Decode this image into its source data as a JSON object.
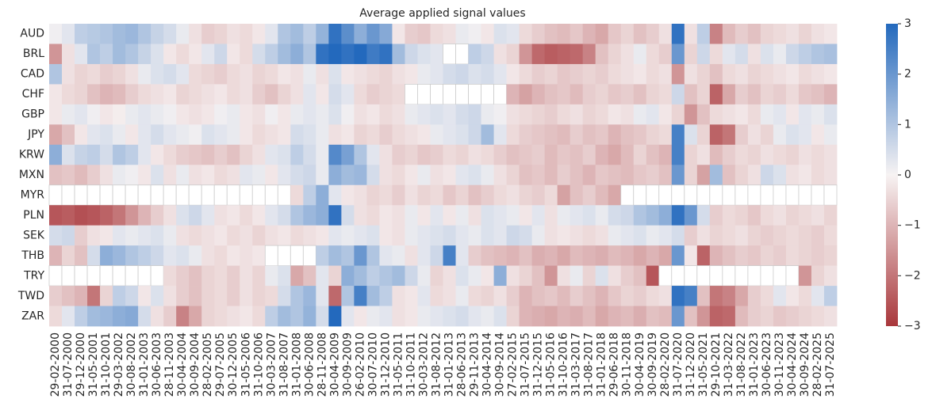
{
  "chart_data": {
    "type": "heatmap",
    "title": "Average applied signal values",
    "categories": [
      "29-02-2000",
      "31-07-2000",
      "29-12-2000",
      "31-05-2001",
      "31-10-2001",
      "29-03-2002",
      "30-08-2002",
      "31-01-2003",
      "30-06-2003",
      "28-11-2003",
      "30-04-2004",
      "30-09-2004",
      "28-02-2005",
      "29-07-2005",
      "30-12-2005",
      "31-05-2006",
      "31-10-2006",
      "30-03-2007",
      "31-08-2007",
      "31-01-2008",
      "30-06-2008",
      "28-11-2008",
      "30-04-2009",
      "30-09-2009",
      "26-02-2010",
      "30-07-2010",
      "31-12-2010",
      "31-05-2011",
      "31-10-2011",
      "30-03-2012",
      "31-08-2012",
      "31-01-2013",
      "28-06-2013",
      "29-11-2013",
      "30-04-2014",
      "30-09-2014",
      "27-02-2015",
      "31-07-2015",
      "31-12-2015",
      "31-05-2016",
      "31-10-2016",
      "31-03-2017",
      "31-08-2017",
      "31-01-2018",
      "29-06-2018",
      "30-11-2018",
      "30-04-2019",
      "30-09-2019",
      "28-02-2020",
      "31-07-2020",
      "31-12-2020",
      "31-05-2021",
      "29-10-2021",
      "31-03-2022",
      "31-08-2022",
      "31-01-2023",
      "30-06-2023",
      "30-11-2023",
      "30-04-2024",
      "30-09-2024",
      "28-02-2025",
      "31-07-2025"
    ],
    "series": [
      {
        "name": "AUD",
        "values": [
          0.1,
          0.3,
          0.8,
          0.9,
          1.0,
          1.2,
          1.3,
          1.0,
          0.7,
          0.5,
          0.2,
          -0.3,
          -0.6,
          -0.5,
          -0.3,
          -0.4,
          -0.2,
          0.3,
          1.0,
          1.2,
          0.8,
          1.4,
          2.8,
          2.2,
          1.5,
          2.0,
          1.6,
          -0.2,
          -0.6,
          -0.7,
          -0.4,
          -0.3,
          0.2,
          0.1,
          -0.2,
          0.4,
          0.3,
          -0.4,
          -0.6,
          -0.8,
          -0.9,
          -0.7,
          -1.0,
          -1.2,
          -0.7,
          -0.5,
          -0.8,
          -0.6,
          -0.3,
          2.8,
          -0.3,
          0.8,
          -1.8,
          -0.9,
          -0.6,
          -0.8,
          -0.5,
          -0.4,
          -0.3,
          -0.5,
          -0.3,
          -0.2
        ]
      },
      {
        "name": "BRL",
        "values": [
          -1.5,
          -0.3,
          0.3,
          1.0,
          0.8,
          1.2,
          1.0,
          0.7,
          0.4,
          -0.2,
          -0.4,
          -0.2,
          0.3,
          0.6,
          -0.2,
          -0.4,
          0.5,
          0.8,
          1.2,
          1.5,
          1.0,
          2.8,
          3.0,
          2.8,
          3.0,
          2.6,
          2.8,
          1.2,
          0.6,
          0.4,
          0.3,
          null,
          null,
          0.8,
          0.6,
          -0.3,
          -0.5,
          -1.5,
          -2.2,
          -2.4,
          -2.3,
          -2.2,
          -1.8,
          -0.8,
          -0.5,
          -0.3,
          0.2,
          -0.4,
          -0.6,
          2.0,
          -0.5,
          0.6,
          -0.4,
          0.3,
          0.5,
          -0.3,
          0.4,
          0.2,
          0.6,
          0.8,
          1.0,
          1.1
        ]
      },
      {
        "name": "CAD",
        "values": [
          1.0,
          -0.3,
          -0.5,
          -0.4,
          -0.6,
          -0.5,
          -0.3,
          0.2,
          0.4,
          0.5,
          0.3,
          -0.4,
          -0.5,
          -0.6,
          -0.4,
          -0.3,
          -0.5,
          -0.4,
          -0.2,
          -0.3,
          0.2,
          -0.3,
          0.4,
          -0.2,
          -0.3,
          -0.4,
          -0.5,
          -0.3,
          -0.2,
          0.2,
          0.3,
          0.5,
          0.6,
          0.4,
          0.5,
          0.3,
          -0.2,
          -0.4,
          -0.6,
          -0.5,
          -0.7,
          -0.6,
          -0.5,
          -0.6,
          -0.4,
          -0.3,
          -0.2,
          -0.4,
          -0.3,
          -1.5,
          -0.3,
          -0.5,
          -0.8,
          -0.4,
          -0.3,
          -0.5,
          -0.4,
          -0.3,
          -0.2,
          -0.4,
          -0.3,
          -0.2
        ]
      },
      {
        "name": "CHF",
        "values": [
          -0.2,
          -0.4,
          -0.5,
          -0.8,
          -1.0,
          -0.9,
          -0.6,
          -0.4,
          -0.3,
          -0.2,
          -0.5,
          -0.4,
          -0.3,
          -0.2,
          -0.4,
          -0.3,
          -0.6,
          -0.8,
          -0.5,
          -0.3,
          0.3,
          -0.2,
          0.5,
          0.3,
          -0.4,
          -0.6,
          -0.5,
          -0.4,
          null,
          null,
          null,
          null,
          null,
          null,
          null,
          null,
          -1.0,
          -1.3,
          -1.0,
          -0.8,
          -0.7,
          -0.9,
          -0.6,
          -0.5,
          -0.7,
          -0.6,
          -0.8,
          -0.5,
          -0.4,
          0.6,
          -0.8,
          -0.5,
          -2.3,
          -1.2,
          -0.6,
          -0.8,
          -0.5,
          -0.6,
          -0.4,
          -0.7,
          -0.8,
          -1.0
        ]
      },
      {
        "name": "GBP",
        "values": [
          -0.2,
          0.2,
          0.3,
          0.1,
          -0.2,
          -0.1,
          0.2,
          0.3,
          0.2,
          0.1,
          -0.2,
          -0.3,
          -0.2,
          0.1,
          0.2,
          -0.2,
          -0.3,
          0.1,
          -0.2,
          0.2,
          0.3,
          0.2,
          0.4,
          0.1,
          -0.3,
          -0.2,
          -0.4,
          -0.3,
          0.2,
          0.3,
          0.4,
          0.3,
          0.5,
          0.6,
          0.2,
          0.1,
          -0.3,
          -0.4,
          -0.5,
          -0.6,
          -0.4,
          -0.3,
          -0.5,
          -0.4,
          -0.2,
          -0.3,
          0.2,
          0.3,
          -0.2,
          -0.5,
          -1.5,
          -0.8,
          -0.4,
          -0.3,
          -0.2,
          -0.4,
          0.2,
          0.3,
          -0.2,
          0.3,
          0.2,
          0.4
        ]
      },
      {
        "name": "JPY",
        "values": [
          -1.2,
          -0.8,
          -0.2,
          0.3,
          0.4,
          0.2,
          -0.2,
          0.3,
          0.5,
          0.3,
          0.2,
          0.1,
          0.4,
          0.3,
          0.2,
          -0.2,
          -0.4,
          -0.3,
          -0.2,
          0.5,
          0.4,
          0.2,
          -0.3,
          -0.2,
          -0.5,
          -0.4,
          -0.6,
          -0.4,
          -0.3,
          -0.2,
          0.2,
          0.3,
          0.4,
          0.6,
          1.2,
          0.3,
          -0.4,
          -0.6,
          -0.7,
          -0.8,
          -0.9,
          -0.6,
          -0.8,
          -0.7,
          -1.0,
          -0.8,
          -0.7,
          -0.5,
          -0.4,
          2.5,
          0.4,
          -0.5,
          -2.3,
          -2.0,
          -0.6,
          -0.3,
          -0.5,
          0.2,
          0.4,
          0.3,
          -0.2,
          0.2
        ]
      },
      {
        "name": "KRW",
        "values": [
          1.5,
          0.4,
          0.7,
          0.8,
          0.5,
          1.0,
          0.8,
          0.3,
          -0.2,
          -0.4,
          -0.6,
          -0.7,
          -0.8,
          -0.6,
          -0.8,
          -0.5,
          -0.3,
          0.3,
          0.4,
          0.8,
          0.5,
          0.2,
          2.3,
          1.8,
          1.0,
          0.3,
          -0.3,
          -0.6,
          -0.5,
          -0.7,
          -0.6,
          -0.4,
          -0.5,
          -0.3,
          -0.4,
          -0.6,
          -0.8,
          -0.7,
          -0.6,
          -0.9,
          -0.7,
          -0.8,
          -0.6,
          -1.0,
          -1.2,
          -0.9,
          -0.5,
          -0.8,
          -1.0,
          2.5,
          -0.5,
          -0.3,
          -0.9,
          -0.6,
          -0.4,
          -0.5,
          -0.3,
          -0.4,
          -0.5,
          -0.3,
          -0.4,
          -0.3
        ]
      },
      {
        "name": "MXN",
        "values": [
          -0.8,
          -0.7,
          -0.9,
          -0.6,
          -0.3,
          0.2,
          0.1,
          -0.2,
          0.4,
          -0.3,
          0.2,
          -0.3,
          -0.2,
          -0.4,
          -0.3,
          0.3,
          0.2,
          -0.2,
          0.3,
          0.5,
          0.6,
          0.2,
          1.5,
          1.2,
          1.3,
          0.5,
          -0.3,
          -0.4,
          -0.2,
          0.2,
          -0.3,
          -0.2,
          0.3,
          0.4,
          0.2,
          -0.3,
          -0.5,
          -0.8,
          -0.7,
          -0.9,
          -0.6,
          -0.8,
          -1.0,
          -0.7,
          -0.8,
          -0.9,
          -0.7,
          -0.6,
          -0.8,
          2.0,
          -0.5,
          -1.3,
          1.2,
          -0.8,
          -0.5,
          -0.3,
          0.6,
          0.4,
          -0.3,
          -0.2,
          -0.4,
          -0.3
        ]
      },
      {
        "name": "MYR",
        "values": [
          null,
          null,
          null,
          null,
          null,
          null,
          null,
          null,
          null,
          null,
          null,
          null,
          null,
          null,
          null,
          null,
          null,
          null,
          null,
          -0.4,
          0.8,
          1.5,
          0.3,
          -0.2,
          -0.3,
          -0.5,
          -0.4,
          -0.6,
          -0.3,
          -0.5,
          -0.4,
          -0.7,
          -0.5,
          -0.8,
          -0.6,
          -0.4,
          -0.3,
          -0.5,
          -0.6,
          -0.4,
          -1.3,
          -0.8,
          -0.6,
          -0.9,
          -1.2,
          null,
          null,
          null,
          null,
          null,
          null,
          null,
          null,
          null,
          null,
          null,
          null,
          null,
          null,
          null,
          null,
          null
        ]
      },
      {
        "name": "PLN",
        "values": [
          -2.5,
          -2.4,
          -2.6,
          -2.5,
          -2.3,
          -2.0,
          -1.5,
          -1.0,
          -0.6,
          -0.3,
          0.4,
          0.6,
          0.3,
          -0.3,
          -0.2,
          -0.4,
          -0.2,
          0.3,
          0.5,
          1.0,
          1.3,
          1.5,
          2.8,
          0.5,
          -0.3,
          -0.4,
          -0.2,
          -0.3,
          0.2,
          -0.2,
          0.3,
          -0.2,
          0.2,
          -0.3,
          0.4,
          0.3,
          0.2,
          -0.2,
          0.3,
          -0.3,
          0.2,
          0.3,
          0.4,
          0.2,
          0.5,
          0.6,
          1.0,
          1.2,
          1.5,
          2.8,
          2.0,
          0.5,
          -0.6,
          -0.4,
          -0.5,
          -0.7,
          -0.4,
          -0.3,
          -0.5,
          -0.4,
          -0.3,
          -0.5
        ]
      },
      {
        "name": "SEK",
        "values": [
          0.5,
          0.6,
          -0.6,
          -0.3,
          -0.2,
          0.3,
          0.2,
          0.3,
          0.4,
          0.2,
          -0.3,
          -0.4,
          -0.3,
          -0.2,
          -0.4,
          -0.3,
          -0.5,
          -0.3,
          -0.2,
          -0.4,
          -0.3,
          -0.2,
          0.3,
          0.2,
          0.3,
          0.4,
          -0.2,
          -0.3,
          0.2,
          0.3,
          0.4,
          0.5,
          0.3,
          0.2,
          0.4,
          0.3,
          0.6,
          0.5,
          0.2,
          -0.3,
          -0.2,
          -0.3,
          -0.4,
          -0.3,
          0.2,
          0.3,
          0.4,
          0.2,
          0.3,
          0.5,
          -0.6,
          -0.3,
          -0.5,
          -0.4,
          -0.3,
          -0.5,
          -0.6,
          -0.5,
          -0.4,
          -0.5,
          -0.6,
          -0.4
        ]
      },
      {
        "name": "THB",
        "values": [
          -1.0,
          -0.5,
          -0.8,
          0.5,
          1.5,
          1.3,
          1.0,
          0.8,
          0.6,
          0.3,
          0.4,
          0.2,
          -0.3,
          -0.4,
          -0.2,
          -0.3,
          -0.2,
          null,
          null,
          null,
          null,
          0.8,
          1.2,
          1.0,
          2.0,
          1.0,
          0.3,
          0.2,
          -0.3,
          0.3,
          0.6,
          2.5,
          0.3,
          -0.6,
          -0.8,
          -0.9,
          -1.0,
          -0.8,
          -1.1,
          -1.0,
          -1.2,
          -0.9,
          -1.0,
          -1.1,
          -0.9,
          -1.0,
          -1.2,
          -1.0,
          -1.2,
          2.0,
          -0.2,
          -2.3,
          -1.0,
          -0.8,
          -0.6,
          -0.7,
          -0.5,
          -0.6,
          -0.4,
          -0.5,
          -0.6,
          -0.5
        ]
      },
      {
        "name": "TRY",
        "values": [
          null,
          null,
          null,
          null,
          null,
          null,
          null,
          null,
          null,
          -0.4,
          -0.6,
          -0.8,
          -0.5,
          -0.4,
          -0.6,
          -0.3,
          -0.5,
          0.2,
          0.4,
          -1.2,
          -0.8,
          0.3,
          -0.5,
          1.5,
          1.2,
          0.8,
          1.0,
          1.2,
          0.6,
          0.2,
          -0.5,
          -0.3,
          0.4,
          0.2,
          -0.2,
          1.5,
          -0.3,
          -0.5,
          -0.8,
          -1.5,
          -0.3,
          0.2,
          -0.5,
          0.4,
          -0.3,
          -0.6,
          -0.8,
          -2.5,
          null,
          null,
          null,
          null,
          null,
          null,
          null,
          null,
          null,
          null,
          null,
          -1.5,
          -0.5,
          -0.3
        ]
      },
      {
        "name": "TWD",
        "values": [
          -0.6,
          -0.8,
          -1.0,
          -2.0,
          -0.5,
          0.8,
          0.6,
          -0.2,
          0.4,
          -0.3,
          -0.6,
          -0.8,
          -0.5,
          -0.4,
          -0.6,
          -0.3,
          -0.5,
          -0.4,
          0.5,
          1.0,
          1.3,
          0.3,
          -2.2,
          1.0,
          2.5,
          1.2,
          0.8,
          -0.3,
          -0.2,
          0.3,
          -0.4,
          -0.3,
          0.2,
          -0.4,
          -0.5,
          -0.3,
          -0.6,
          -1.0,
          -0.8,
          -0.7,
          -0.9,
          -0.6,
          -0.8,
          -1.0,
          -0.7,
          -0.5,
          -0.6,
          -0.4,
          -0.3,
          2.8,
          2.5,
          -0.8,
          -2.0,
          -1.8,
          -1.2,
          -0.6,
          -0.4,
          0.3,
          -0.2,
          -0.4,
          0.3,
          0.8
        ]
      },
      {
        "name": "ZAR",
        "values": [
          -0.4,
          0.3,
          0.8,
          1.2,
          1.3,
          1.5,
          1.6,
          0.5,
          -0.3,
          -0.6,
          -1.8,
          -1.2,
          -0.5,
          -0.4,
          -0.3,
          -0.2,
          -0.4,
          0.8,
          1.2,
          1.0,
          1.4,
          0.5,
          3.0,
          0.3,
          -0.2,
          0.2,
          0.3,
          -0.3,
          -0.2,
          0.2,
          0.3,
          0.4,
          0.5,
          0.3,
          0.2,
          0.4,
          -0.5,
          -1.0,
          -1.1,
          -1.2,
          -1.0,
          -1.1,
          -0.9,
          -1.2,
          -1.0,
          -0.9,
          -1.1,
          -0.8,
          -0.9,
          2.0,
          -0.8,
          -1.5,
          -2.3,
          -2.2,
          -0.9,
          -0.6,
          -0.5,
          -0.7,
          -0.6,
          -0.5,
          -0.4,
          -0.3
        ]
      }
    ],
    "clim": [
      -3,
      3
    ],
    "colorbar_ticks": [
      {
        "value": -3,
        "label": "−3"
      },
      {
        "value": -2,
        "label": "−2"
      },
      {
        "value": -1,
        "label": "−1"
      },
      0,
      1,
      2,
      3
    ],
    "cmap": [
      "#a9373b",
      "#f7f3f3",
      "#2369bd"
    ],
    "missing_color": "#ffffff"
  }
}
